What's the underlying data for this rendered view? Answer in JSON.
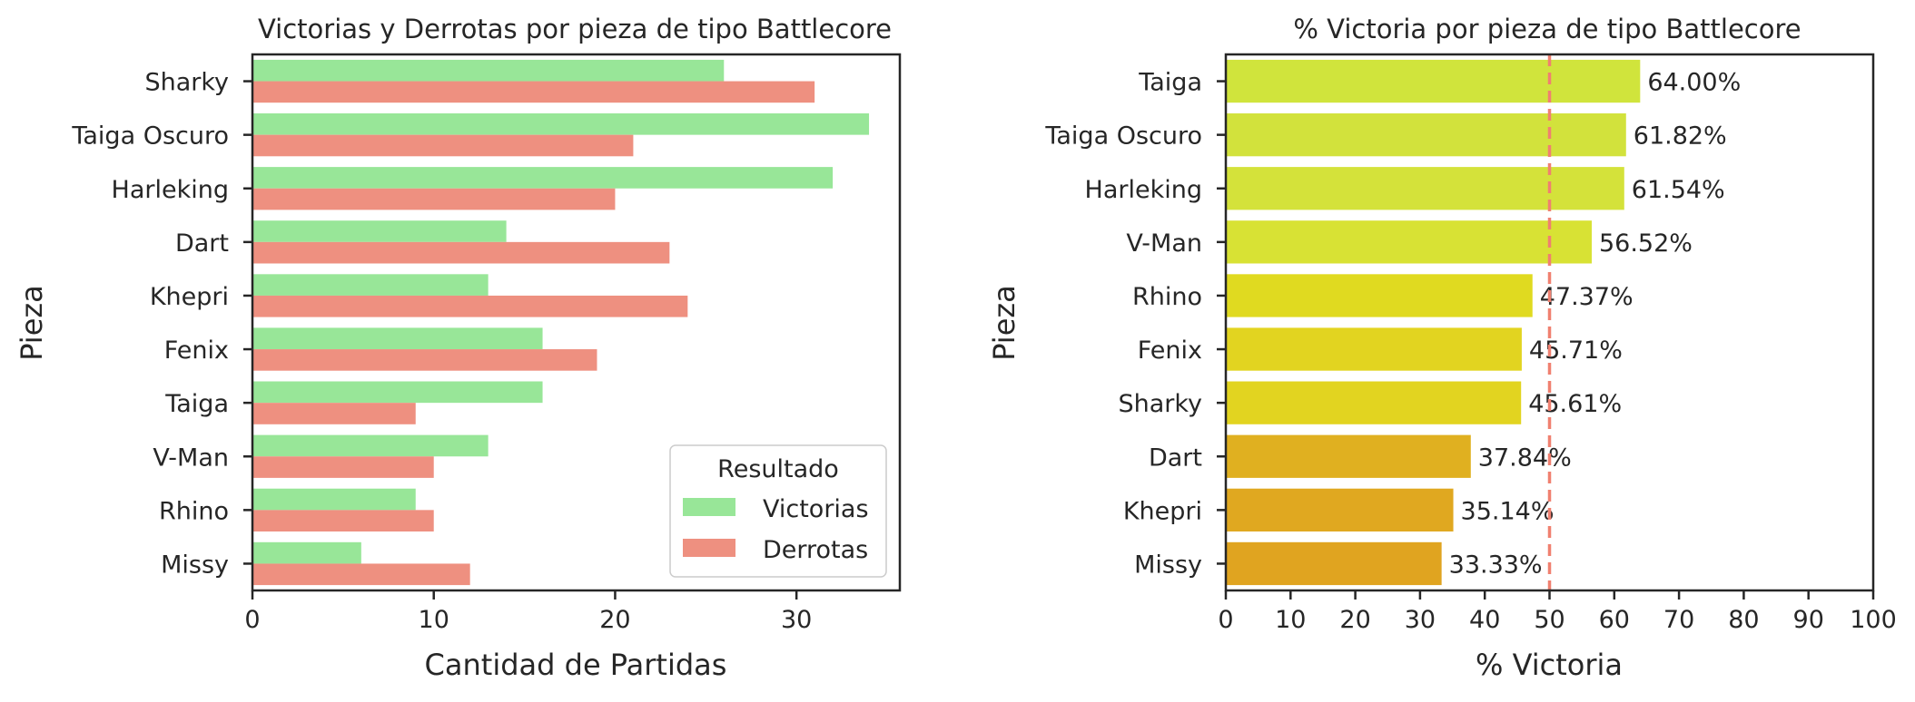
{
  "chart_data": [
    {
      "type": "bar",
      "orientation": "horizontal",
      "title": "Victorias y Derrotas por pieza de tipo Battlecore",
      "xlabel": "Cantidad de Partidas",
      "ylabel": "Pieza",
      "categories": [
        "Sharky",
        "Taiga Oscuro",
        "Harleking",
        "Dart",
        "Khepri",
        "Fenix",
        "Taiga",
        "V-Man",
        "Rhino",
        "Missy"
      ],
      "series": [
        {
          "name": "Victorias",
          "color": "#98e698",
          "values": [
            26,
            34,
            32,
            14,
            13,
            16,
            16,
            13,
            9,
            6
          ]
        },
        {
          "name": "Derrotas",
          "color": "#ee9080",
          "values": [
            31,
            21,
            20,
            23,
            24,
            19,
            9,
            10,
            10,
            12
          ]
        }
      ],
      "xlim": [
        0,
        35.7
      ],
      "xticks": [
        0,
        10,
        20,
        30
      ],
      "xtick_labels": [
        "0",
        "10",
        "20",
        "30"
      ],
      "legend": {
        "title": "Resultado",
        "position": "lower-right"
      }
    },
    {
      "type": "bar",
      "orientation": "horizontal",
      "title": "% Victoria por pieza de tipo Battlecore",
      "xlabel": "% Victoria",
      "ylabel": "Pieza",
      "categories": [
        "Taiga",
        "Taiga Oscuro",
        "Harleking",
        "V-Man",
        "Rhino",
        "Fenix",
        "Sharky",
        "Dart",
        "Khepri",
        "Missy"
      ],
      "values": [
        64.0,
        61.82,
        61.54,
        56.52,
        47.37,
        45.71,
        45.61,
        37.84,
        35.14,
        33.33
      ],
      "value_labels": [
        "64.00%",
        "61.82%",
        "61.54%",
        "56.52%",
        "47.37%",
        "45.71%",
        "45.61%",
        "37.84%",
        "35.14%",
        "33.33%"
      ],
      "colors": [
        "#d0e43c",
        "#d2e23c",
        "#d4e23a",
        "#d8e234",
        "#e0da20",
        "#e2d420",
        "#e2d420",
        "#e0b020",
        "#e0a820",
        "#e0a420"
      ],
      "xlim": [
        0,
        100
      ],
      "xticks": [
        0,
        10,
        20,
        30,
        40,
        50,
        60,
        70,
        80,
        90,
        100
      ],
      "xtick_labels": [
        "0",
        "10",
        "20",
        "30",
        "40",
        "50",
        "60",
        "70",
        "80",
        "90",
        "100"
      ],
      "reference_line": {
        "value": 50,
        "color": "#f08070",
        "style": "dashed"
      }
    }
  ]
}
